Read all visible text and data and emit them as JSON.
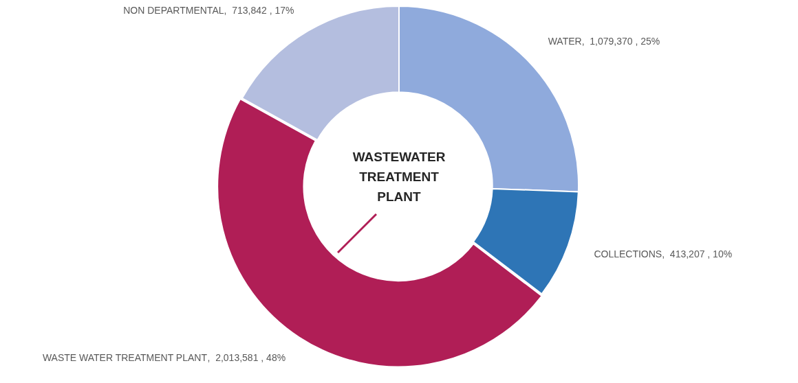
{
  "chart_data": {
    "type": "donut",
    "title": "WASTEWATER TREATMENT PLANT",
    "categories": [
      "WATER",
      "COLLECTIONS",
      "WASTE WATER TREATMENT PLANT",
      "NON DEPARTMENTAL"
    ],
    "values": [
      1079370,
      413207,
      2013581,
      713842
    ],
    "colors": [
      "#8faadc",
      "#2e75b6",
      "#b01e56",
      "#b4bedf"
    ],
    "value_labels": [
      ",  1,079,370 , 25%",
      ",  413,207 , 10%",
      ",  2,013,581 , 48%",
      ",  713,842 , 17%"
    ],
    "legend": false
  }
}
